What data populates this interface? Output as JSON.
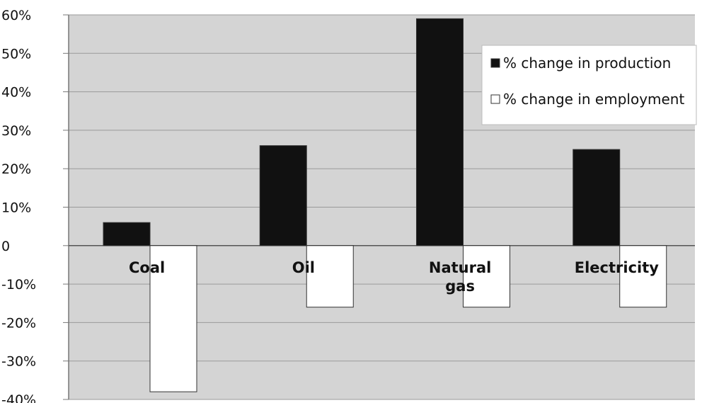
{
  "chart_data": {
    "type": "bar",
    "categories": [
      "Coal",
      "Oil",
      "Natural gas",
      "Electricity"
    ],
    "series": [
      {
        "name": "% change in production",
        "values": [
          6,
          26,
          59,
          25
        ],
        "color": "#111111"
      },
      {
        "name": "% change in employment",
        "values": [
          -38,
          -16,
          -16,
          -16
        ],
        "color": "#ffffff"
      }
    ],
    "yticks": [
      "-40%",
      "-30%",
      "-20%",
      "-10%",
      "0",
      "10%",
      "20%",
      "30%",
      "40%",
      "50%",
      "60%"
    ],
    "ylim": [
      -40,
      60
    ],
    "grid": true,
    "legend": "top-right",
    "plot_background": "#d4d4d4"
  }
}
